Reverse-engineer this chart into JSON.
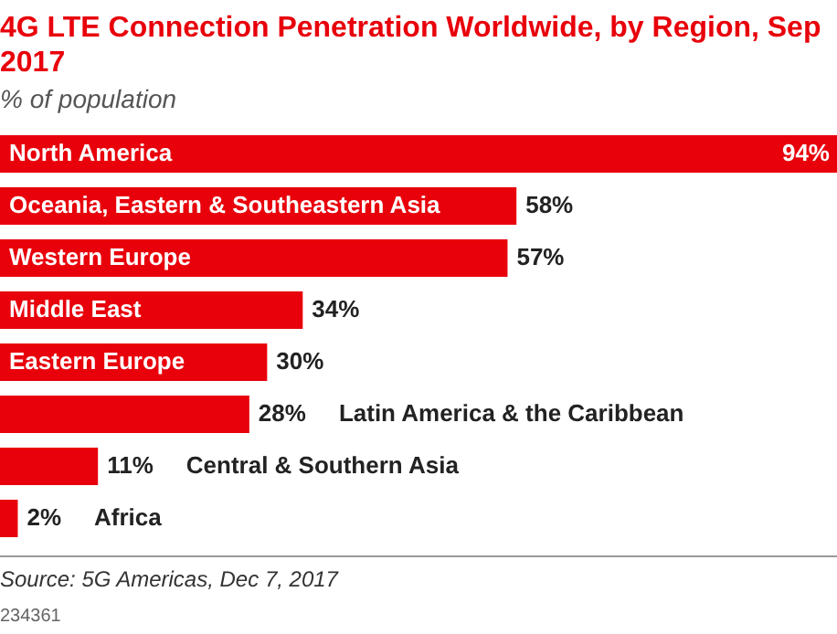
{
  "chart_data": {
    "type": "bar",
    "orientation": "horizontal",
    "title": "4G LTE Connection Penetration Worldwide, by Region, Sep 2017",
    "subtitle": "% of population",
    "categories": [
      "North America",
      "Oceania, Eastern & Southeastern Asia",
      "Western Europe",
      "Middle East",
      "Eastern Europe",
      "Latin America & the Caribbean",
      "Central & Southern Asia",
      "Africa"
    ],
    "values": [
      94,
      58,
      57,
      34,
      30,
      28,
      11,
      2
    ],
    "value_labels": [
      "94%",
      "58%",
      "57%",
      "34%",
      "30%",
      "28%",
      "11%",
      "2%"
    ],
    "color": "#e8000b",
    "annotations": [
      "Source: 5G Americas, Dec 7, 2017",
      "234361"
    ]
  }
}
